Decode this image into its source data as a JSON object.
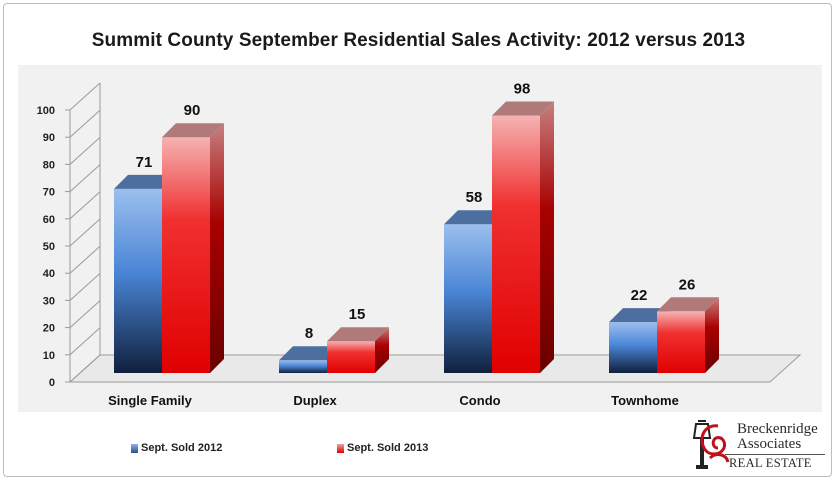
{
  "chart_data": {
    "type": "bar",
    "title": "Summit County September Residential Sales Activity:  2012 versus 2013",
    "categories": [
      "Single Family",
      "Duplex",
      "Condo",
      "Townhome"
    ],
    "series": [
      {
        "name": "Sept. Sold 2012",
        "values": [
          71,
          8,
          58,
          22
        ],
        "color": "#3f74c4"
      },
      {
        "name": "Sept. Sold 2013",
        "values": [
          90,
          15,
          98,
          26
        ],
        "color": "#e80000"
      }
    ],
    "ylim": [
      0,
      100
    ],
    "yticks": [
      0,
      10,
      20,
      30,
      40,
      50,
      60,
      70,
      80,
      90,
      100
    ],
    "grid": false,
    "legend": "bottom-left",
    "data_labels": true,
    "style": "3d"
  },
  "logo": {
    "name_line1": "Breckenridge",
    "name_line2": "Associates",
    "tagline": "REAL ESTATE",
    "monogram": "BA"
  }
}
